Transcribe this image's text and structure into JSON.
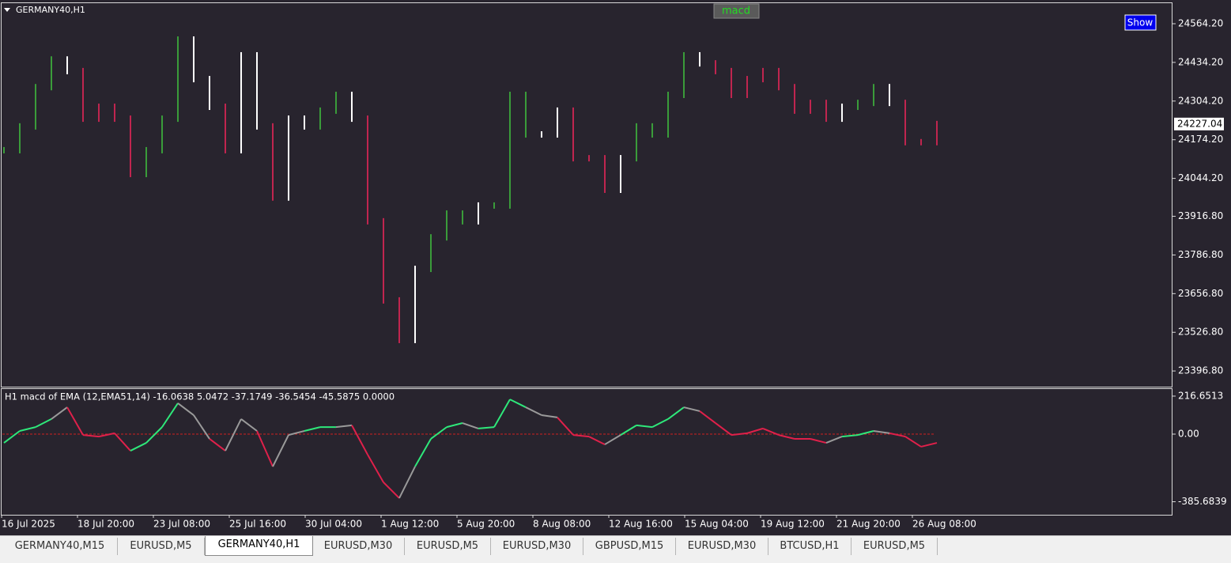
{
  "window": {
    "symbol_label": "GERMANY40,H1",
    "indicator_button": "macd",
    "show_button": "Show",
    "x_labels": [
      "16 Jul 2025",
      "18 Jul 20:00",
      "23 Jul 08:00",
      "25 Jul 16:00",
      "30 Jul 04:00",
      "1 Aug 12:00",
      "5 Aug 20:00",
      "8 Aug 08:00",
      "12 Aug 16:00",
      "15 Aug 04:00",
      "19 Aug 12:00",
      "21 Aug 20:00",
      "26 Aug 08:00"
    ],
    "tabs": [
      "GERMANY40,M15",
      "EURUSD,M5",
      "GERMANY40,H1",
      "EURUSD,M30",
      "EURUSD,M5",
      "EURUSD,M30",
      "GBPUSD,M15",
      "EURUSD,M30",
      "BTCUSD,H1",
      "EURUSD,M5"
    ],
    "active_tab": 2
  },
  "chart_data": [
    {
      "type": "price",
      "last_price": 24227.04,
      "ylim": [
        23344,
        24636
      ],
      "yticks": [
        {
          "value": 24564.2,
          "label": "24564.20"
        },
        {
          "value": 24434.2,
          "label": "24434.20"
        },
        {
          "value": 24304.2,
          "label": "24304.20"
        },
        {
          "value": 24174.2,
          "label": "24174.20"
        },
        {
          "value": 24044.2,
          "label": "24044.20"
        },
        {
          "value": 23916.8,
          "label": "23916.80"
        },
        {
          "value": 23786.8,
          "label": "23786.80"
        },
        {
          "value": 23656.8,
          "label": "23656.80"
        },
        {
          "value": 23526.8,
          "label": "23526.80"
        },
        {
          "value": 23396.8,
          "label": "23396.80"
        }
      ],
      "values": [
        24139,
        24219,
        24351,
        24444,
        24405,
        24245,
        24285,
        24245,
        24059,
        24139,
        24245,
        24511,
        24378,
        24285,
        24139,
        24458,
        24219,
        23980,
        24245,
        24219,
        24272,
        24325,
        24245,
        23900,
        23634,
        23501,
        23740,
        23846,
        23926,
        23900,
        23953,
        23953,
        24325,
        24192,
        24192,
        24272,
        24112,
        24112,
        24006,
        24112,
        24219,
        24192,
        24325,
        24458,
        24431,
        24405,
        24325,
        24378,
        24405,
        24351,
        24272,
        24298,
        24245,
        24285,
        24298,
        24351,
        24298,
        24166,
        24166,
        24227
      ],
      "colors": [
        "#3a9c3a",
        "#3a9c3a",
        "#3a9c3a",
        "#3a9c3a",
        "#ffffff",
        "#c0254f",
        "#c0254f",
        "#c0254f",
        "#c0254f",
        "#3a9c3a",
        "#3a9c3a",
        "#3a9c3a",
        "#ffffff",
        "#ffffff",
        "#c0254f",
        "#ffffff",
        "#ffffff",
        "#c0254f",
        "#ffffff",
        "#ffffff",
        "#3a9c3a",
        "#3a9c3a",
        "#ffffff",
        "#c0254f",
        "#c0254f",
        "#c0254f",
        "#ffffff",
        "#3a9c3a",
        "#3a9c3a",
        "#3a9c3a",
        "#ffffff",
        "#3a9c3a",
        "#3a9c3a",
        "#3a9c3a",
        "#ffffff",
        "#ffffff",
        "#c0254f",
        "#c0254f",
        "#c0254f",
        "#ffffff",
        "#3a9c3a",
        "#3a9c3a",
        "#3a9c3a",
        "#3a9c3a",
        "#ffffff",
        "#c0254f",
        "#c0254f",
        "#c0254f",
        "#c0254f",
        "#c0254f",
        "#c0254f",
        "#c0254f",
        "#c0254f",
        "#ffffff",
        "#3a9c3a",
        "#3a9c3a",
        "#ffffff",
        "#c0254f",
        "#c0254f",
        "#c0254f"
      ]
    },
    {
      "type": "line",
      "title": "H1 macd of EMA (12,EMA51,14) -16.0638 5.0472 -37.1749 -36.5454 -45.5875 0.0000",
      "ylim": [
        -460,
        257
      ],
      "yticks": [
        216.6513,
        {
          "value": 0,
          "label": "0.00"
        },
        -385.6839
      ],
      "values": [
        -50,
        18,
        40,
        86,
        153,
        -5,
        -14,
        5,
        -95,
        -50,
        40,
        176,
        108,
        -27,
        -95,
        86,
        18,
        -185,
        -5,
        18,
        40,
        40,
        50,
        -117,
        -275,
        -365,
        -185,
        -27,
        40,
        63,
        32,
        40,
        198,
        153,
        108,
        95,
        -5,
        -14,
        -59,
        -5,
        50,
        40,
        86,
        153,
        131,
        63,
        -5,
        5,
        32,
        -5,
        -27,
        -27,
        -50,
        -14,
        -5,
        18,
        5,
        -14,
        -72,
        -50
      ],
      "colors": [
        "#2ee87a",
        "#2ee87a",
        "#2ee87a",
        "#2ee87a",
        "#9a9a9a",
        "#e0204a",
        "#e0204a",
        "#e0204a",
        "#e0204a",
        "#2ee87a",
        "#2ee87a",
        "#2ee87a",
        "#9a9a9a",
        "#9a9a9a",
        "#e0204a",
        "#9a9a9a",
        "#9a9a9a",
        "#e0204a",
        "#9a9a9a",
        "#9a9a9a",
        "#2ee87a",
        "#2ee87a",
        "#9a9a9a",
        "#e0204a",
        "#e0204a",
        "#e0204a",
        "#9a9a9a",
        "#2ee87a",
        "#2ee87a",
        "#2ee87a",
        "#9a9a9a",
        "#2ee87a",
        "#2ee87a",
        "#2ee87a",
        "#9a9a9a",
        "#9a9a9a",
        "#e0204a",
        "#e0204a",
        "#e0204a",
        "#9a9a9a",
        "#2ee87a",
        "#2ee87a",
        "#2ee87a",
        "#2ee87a",
        "#9a9a9a",
        "#e0204a",
        "#e0204a",
        "#e0204a",
        "#e0204a",
        "#e0204a",
        "#e0204a",
        "#e0204a",
        "#e0204a",
        "#9a9a9a",
        "#2ee87a",
        "#2ee87a",
        "#9a9a9a",
        "#e0204a",
        "#e0204a",
        "#e0204a"
      ],
      "zero_line_color": "#d02020"
    }
  ]
}
